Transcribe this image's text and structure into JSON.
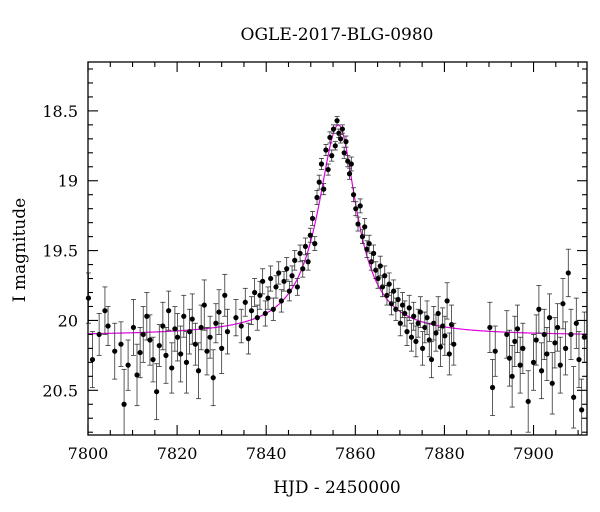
{
  "chart_data": {
    "type": "scatter",
    "title": "OGLE-2017-BLG-0980",
    "xlabel": "HJD - 2450000",
    "ylabel": "I magnitude",
    "xlim": [
      7800,
      7912
    ],
    "ylim": [
      18.15,
      20.82
    ],
    "y_inverted": true,
    "x_ticks": [
      7800,
      7820,
      7840,
      7860,
      7880,
      7900
    ],
    "y_ticks": [
      18.5,
      19,
      19.5,
      20,
      20.5
    ],
    "x_tick_labels": [
      "7800",
      "7820",
      "7840",
      "7860",
      "7880",
      "7900"
    ],
    "y_tick_labels": [
      "18.5",
      "19",
      "19.5",
      "20",
      "20.5"
    ],
    "grid": false,
    "colors": {
      "points": "#000000",
      "model": "#e000e0"
    },
    "model": {
      "t0": 7856.2,
      "baseline": 20.11,
      "peak": 18.6,
      "tau_rise": 5.6,
      "tau_fall": 5.0
    },
    "series": [
      {
        "kind": "points",
        "points": [
          [
            7800.1,
            19.84,
            0.18
          ],
          [
            7801.0,
            20.28,
            0.2
          ],
          [
            7802.5,
            20.1,
            0.15
          ],
          [
            7803.8,
            19.93,
            0.17
          ],
          [
            7804.5,
            20.04,
            0.14
          ],
          [
            7806.0,
            20.22,
            0.2
          ],
          [
            7807.4,
            20.17,
            0.16
          ],
          [
            7808.1,
            20.6,
            0.25
          ],
          [
            7809.0,
            20.32,
            0.18
          ],
          [
            7810.2,
            20.05,
            0.2
          ],
          [
            7811.0,
            20.39,
            0.22
          ],
          [
            7811.7,
            20.23,
            0.18
          ],
          [
            7812.4,
            20.1,
            0.2
          ],
          [
            7813.2,
            19.97,
            0.17
          ],
          [
            7813.9,
            20.14,
            0.18
          ],
          [
            7814.6,
            20.28,
            0.16
          ],
          [
            7815.4,
            20.51,
            0.2
          ],
          [
            7816.0,
            20.18,
            0.15
          ],
          [
            7816.8,
            20.04,
            0.17
          ],
          [
            7817.5,
            20.25,
            0.2
          ],
          [
            7818.1,
            19.93,
            0.14
          ],
          [
            7818.8,
            20.34,
            0.18
          ],
          [
            7819.5,
            20.06,
            0.16
          ],
          [
            7820.1,
            20.12,
            0.17
          ],
          [
            7820.8,
            20.24,
            0.2
          ],
          [
            7821.5,
            19.97,
            0.15
          ],
          [
            7822.1,
            20.3,
            0.22
          ],
          [
            7822.8,
            20.08,
            0.16
          ],
          [
            7823.4,
            19.99,
            0.18
          ],
          [
            7824.1,
            20.17,
            0.15
          ],
          [
            7824.8,
            20.36,
            0.2
          ],
          [
            7825.4,
            20.05,
            0.16
          ],
          [
            7826.1,
            19.89,
            0.18
          ],
          [
            7826.7,
            20.22,
            0.17
          ],
          [
            7827.4,
            20.12,
            0.15
          ],
          [
            7828.1,
            20.41,
            0.2
          ],
          [
            7828.7,
            20.02,
            0.14
          ],
          [
            7829.4,
            19.94,
            0.16
          ],
          [
            7830.0,
            20.2,
            0.18
          ],
          [
            7830.7,
            19.82,
            0.15
          ],
          [
            7831.3,
            20.08,
            0.16
          ],
          [
            7833.2,
            19.98,
            0.13
          ],
          [
            7834.4,
            20.04,
            0.12
          ],
          [
            7835.3,
            19.87,
            0.1
          ],
          [
            7836.0,
            20.13,
            0.11
          ],
          [
            7836.7,
            19.93,
            0.1
          ],
          [
            7837.4,
            19.8,
            0.1
          ],
          [
            7838.0,
            19.98,
            0.09
          ],
          [
            7838.6,
            19.82,
            0.1
          ],
          [
            7839.2,
            19.72,
            0.09
          ],
          [
            7839.8,
            19.95,
            0.09
          ],
          [
            7840.4,
            19.84,
            0.08
          ],
          [
            7841.0,
            19.7,
            0.09
          ],
          [
            7841.6,
            19.92,
            0.08
          ],
          [
            7842.2,
            19.76,
            0.08
          ],
          [
            7842.8,
            19.66,
            0.08
          ],
          [
            7843.4,
            19.86,
            0.08
          ],
          [
            7844.0,
            19.72,
            0.07
          ],
          [
            7844.6,
            19.63,
            0.08
          ],
          [
            7845.2,
            19.79,
            0.07
          ],
          [
            7845.8,
            19.68,
            0.07
          ],
          [
            7846.4,
            19.57,
            0.07
          ],
          [
            7847.0,
            19.76,
            0.06
          ],
          [
            7847.6,
            19.52,
            0.06
          ],
          [
            7848.2,
            19.63,
            0.06
          ],
          [
            7848.8,
            19.47,
            0.06
          ],
          [
            7849.4,
            19.58,
            0.06
          ],
          [
            7849.9,
            19.39,
            0.05
          ],
          [
            7850.4,
            19.27,
            0.05
          ],
          [
            7850.9,
            19.45,
            0.05
          ],
          [
            7851.4,
            19.12,
            0.05
          ],
          [
            7851.9,
            19.01,
            0.05
          ],
          [
            7852.4,
            18.88,
            0.04
          ],
          [
            7852.9,
            19.06,
            0.04
          ],
          [
            7853.4,
            18.78,
            0.04
          ],
          [
            7853.9,
            18.92,
            0.04
          ],
          [
            7854.3,
            18.69,
            0.04
          ],
          [
            7854.7,
            18.82,
            0.04
          ],
          [
            7855.1,
            18.63,
            0.03
          ],
          [
            7855.5,
            18.75,
            0.03
          ],
          [
            7855.9,
            18.57,
            0.03
          ],
          [
            7856.3,
            18.66,
            0.03
          ],
          [
            7856.7,
            18.7,
            0.03
          ],
          [
            7857.1,
            18.63,
            0.03
          ],
          [
            7857.5,
            18.8,
            0.04
          ],
          [
            7857.9,
            18.72,
            0.04
          ],
          [
            7858.3,
            18.86,
            0.04
          ],
          [
            7858.7,
            18.95,
            0.04
          ],
          [
            7859.1,
            18.88,
            0.05
          ],
          [
            7859.6,
            19.1,
            0.05
          ],
          [
            7860.1,
            19.2,
            0.05
          ],
          [
            7860.6,
            19.31,
            0.05
          ],
          [
            7861.1,
            19.18,
            0.05
          ],
          [
            7861.6,
            19.4,
            0.05
          ],
          [
            7862.1,
            19.33,
            0.06
          ],
          [
            7862.6,
            19.49,
            0.06
          ],
          [
            7863.1,
            19.45,
            0.06
          ],
          [
            7863.6,
            19.58,
            0.06
          ],
          [
            7864.1,
            19.52,
            0.06
          ],
          [
            7864.6,
            19.64,
            0.06
          ],
          [
            7865.1,
            19.7,
            0.07
          ],
          [
            7865.6,
            19.61,
            0.07
          ],
          [
            7866.1,
            19.76,
            0.07
          ],
          [
            7866.6,
            19.68,
            0.07
          ],
          [
            7867.1,
            19.82,
            0.07
          ],
          [
            7867.6,
            19.74,
            0.08
          ],
          [
            7868.1,
            19.88,
            0.08
          ],
          [
            7868.6,
            19.79,
            0.08
          ],
          [
            7869.1,
            19.92,
            0.08
          ],
          [
            7869.6,
            19.85,
            0.08
          ],
          [
            7870.1,
            20.02,
            0.09
          ],
          [
            7870.6,
            19.89,
            0.09
          ],
          [
            7871.1,
            19.95,
            0.09
          ],
          [
            7871.6,
            20.08,
            0.1
          ],
          [
            7872.1,
            19.91,
            0.09
          ],
          [
            7872.6,
            20.12,
            0.1
          ],
          [
            7873.1,
            19.97,
            0.1
          ],
          [
            7873.6,
            20.15,
            0.11
          ],
          [
            7874.1,
            20.02,
            0.1
          ],
          [
            7874.6,
            19.94,
            0.11
          ],
          [
            7875.1,
            20.2,
            0.12
          ],
          [
            7875.6,
            20.05,
            0.11
          ],
          [
            7876.1,
            19.98,
            0.12
          ],
          [
            7876.6,
            20.14,
            0.12
          ],
          [
            7877.1,
            20.28,
            0.13
          ],
          [
            7877.6,
            20.02,
            0.12
          ],
          [
            7878.1,
            20.09,
            0.13
          ],
          [
            7878.6,
            19.95,
            0.12
          ],
          [
            7879.1,
            20.19,
            0.14
          ],
          [
            7879.6,
            20.04,
            0.13
          ],
          [
            7880.1,
            20.11,
            0.14
          ],
          [
            7880.6,
            19.86,
            0.13
          ],
          [
            7881.1,
            20.24,
            0.15
          ],
          [
            7881.6,
            20.03,
            0.14
          ],
          [
            7882.1,
            20.17,
            0.15
          ],
          [
            7890.2,
            20.05,
            0.18
          ],
          [
            7890.8,
            20.48,
            0.2
          ],
          [
            7891.4,
            20.22,
            0.18
          ],
          [
            7894.0,
            20.1,
            0.17
          ],
          [
            7894.6,
            20.27,
            0.2
          ],
          [
            7895.2,
            20.4,
            0.22
          ],
          [
            7895.8,
            20.15,
            0.18
          ],
          [
            7896.4,
            20.06,
            0.17
          ],
          [
            7897.0,
            20.32,
            0.2
          ],
          [
            7897.6,
            20.2,
            0.18
          ],
          [
            7898.8,
            20.58,
            0.22
          ],
          [
            7900.0,
            20.3,
            0.2
          ],
          [
            7900.6,
            20.14,
            0.18
          ],
          [
            7901.2,
            19.92,
            0.17
          ],
          [
            7901.8,
            20.36,
            0.2
          ],
          [
            7902.4,
            20.1,
            0.18
          ],
          [
            7903.0,
            20.24,
            0.19
          ],
          [
            7903.6,
            19.98,
            0.17
          ],
          [
            7904.2,
            20.45,
            0.22
          ],
          [
            7904.8,
            20.16,
            0.18
          ],
          [
            7905.4,
            20.05,
            0.17
          ],
          [
            7906.0,
            20.32,
            0.2
          ],
          [
            7906.6,
            19.88,
            0.18
          ],
          [
            7907.2,
            20.2,
            0.19
          ],
          [
            7907.8,
            19.66,
            0.17
          ],
          [
            7908.4,
            20.1,
            0.18
          ],
          [
            7909.0,
            20.55,
            0.22
          ],
          [
            7909.6,
            20.02,
            0.18
          ],
          [
            7910.2,
            20.28,
            0.2
          ],
          [
            7910.8,
            20.64,
            0.22
          ],
          [
            7911.4,
            20.12,
            0.18
          ]
        ]
      }
    ]
  }
}
